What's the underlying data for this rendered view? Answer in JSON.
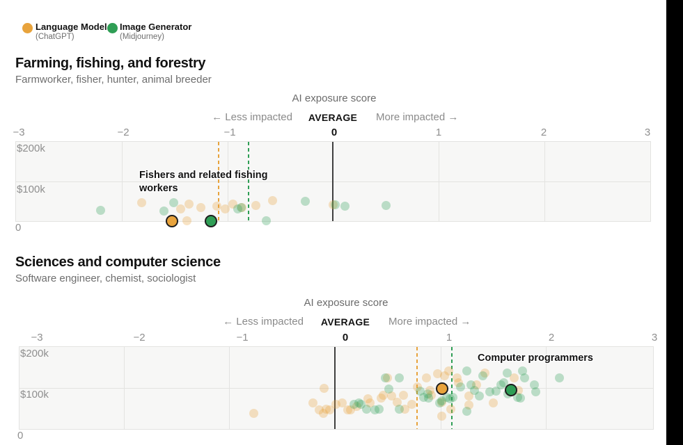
{
  "colors": {
    "language_model": "#e8a33c",
    "image_generator": "#2f9e55",
    "average_line": "#3f3f3f",
    "plot_background": "#f7f7f6",
    "gridline": "#e3e3e1"
  },
  "legend": {
    "items": [
      {
        "label": "Language Model",
        "sublabel": "(ChatGPT)",
        "color": "#e8a33c"
      },
      {
        "label": "Image Generator",
        "sublabel": "(Midjourney)",
        "color": "#2f9e55"
      }
    ]
  },
  "chart_data": [
    {
      "type": "scatter",
      "title": "Farming, fishing, and forestry",
      "subtitle": "Farmworker, fisher, hunter, animal breeder",
      "axis_title": "AI exposure score",
      "less_label": "← Less impacted",
      "average_label": "AVERAGE",
      "more_label": "More impacted →",
      "x_tick_labels": [
        "−3",
        "−2",
        "−1",
        "0",
        "1",
        "2",
        "3"
      ],
      "x_range": [
        -3,
        3
      ],
      "y_tick_labels": [
        "$200k",
        "$100k",
        "0"
      ],
      "y_range_salary_k": [
        0,
        200
      ],
      "annotation": "Fishers and related fishing workers",
      "average_line_x": 0,
      "ref_lines": [
        {
          "series": "Language Model",
          "x": -1.08
        },
        {
          "series": "Image Generator",
          "x": -0.8
        }
      ],
      "highlighted": [
        {
          "series": "Language Model",
          "label": "Fishers and related fishing workers",
          "x": -1.52,
          "salary_k": 0
        },
        {
          "series": "Image Generator",
          "label": "Fishers and related fishing workers",
          "x": -1.15,
          "salary_k": 0
        }
      ],
      "series": [
        {
          "name": "Language Model",
          "points": [
            [
              -1.81,
              47
            ],
            [
              -1.44,
              31
            ],
            [
              -1.38,
              1
            ],
            [
              -1.36,
              43
            ],
            [
              -1.25,
              35
            ],
            [
              -1.1,
              38
            ],
            [
              -1.02,
              30
            ],
            [
              -0.95,
              43
            ],
            [
              -0.86,
              35
            ],
            [
              -0.73,
              40
            ],
            [
              -0.57,
              52
            ],
            [
              0.0,
              42
            ]
          ]
        },
        {
          "name": "Image Generator",
          "points": [
            [
              -2.2,
              28
            ],
            [
              -1.6,
              26
            ],
            [
              -1.51,
              47
            ],
            [
              -0.9,
              30
            ],
            [
              -0.87,
              35
            ],
            [
              -0.63,
              1
            ],
            [
              -0.26,
              50
            ],
            [
              0.02,
              42
            ],
            [
              0.11,
              38
            ],
            [
              0.5,
              40
            ]
          ]
        }
      ]
    },
    {
      "type": "scatter",
      "title": "Sciences and computer science",
      "subtitle": "Software engineer, chemist, sociologist",
      "axis_title": "AI exposure score",
      "less_label": "← Less impacted",
      "average_label": "AVERAGE",
      "more_label": "More impacted →",
      "x_tick_labels": [
        "−3",
        "−2",
        "−1",
        "0",
        "1",
        "2",
        "3"
      ],
      "x_range": [
        -3,
        3
      ],
      "y_tick_labels": [
        "$200k",
        "$100k",
        "0"
      ],
      "y_range_salary_k": [
        0,
        200
      ],
      "annotation": "Computer programmers",
      "average_line_x": 0,
      "ref_lines": [
        {
          "series": "Language Model",
          "x": 0.78
        },
        {
          "series": "Image Generator",
          "x": 1.11
        }
      ],
      "highlighted": [
        {
          "series": "Language Model",
          "label": "Computer programmers",
          "x": 1.02,
          "salary_k": 97
        },
        {
          "series": "Image Generator",
          "label": "Computer programmers",
          "x": 1.67,
          "salary_k": 95
        }
      ],
      "series": [
        {
          "name": "Language Model",
          "points": [
            [
              -0.77,
              39
            ],
            [
              -0.21,
              64
            ],
            [
              -0.15,
              47
            ],
            [
              -0.11,
              39
            ],
            [
              -0.1,
              100
            ],
            [
              -0.08,
              49
            ],
            [
              -0.05,
              47
            ],
            [
              0.01,
              61
            ],
            [
              0.07,
              64
            ],
            [
              0.12,
              47
            ],
            [
              0.15,
              47
            ],
            [
              0.21,
              56
            ],
            [
              0.31,
              73
            ],
            [
              0.33,
              64
            ],
            [
              0.44,
              75
            ],
            [
              0.46,
              83
            ],
            [
              0.5,
              125
            ],
            [
              0.54,
              81
            ],
            [
              0.59,
              66
            ],
            [
              0.65,
              83
            ],
            [
              0.66,
              49
            ],
            [
              0.73,
              61
            ],
            [
              0.78,
              103
            ],
            [
              0.87,
              124
            ],
            [
              0.9,
              95
            ],
            [
              0.91,
              83
            ],
            [
              0.97,
              134
            ],
            [
              1.01,
              66
            ],
            [
              1.01,
              32
            ],
            [
              1.04,
              129
            ],
            [
              1.08,
              141
            ],
            [
              1.1,
              49
            ],
            [
              1.16,
              124
            ],
            [
              1.17,
              112
            ],
            [
              1.27,
              81
            ],
            [
              1.27,
              58
            ],
            [
              1.34,
              107
            ],
            [
              1.42,
              137
            ],
            [
              1.5,
              64
            ],
            [
              1.7,
              125
            ],
            [
              1.74,
              95
            ]
          ]
        },
        {
          "name": "Image Generator",
          "points": [
            [
              0.18,
              61
            ],
            [
              0.23,
              64
            ],
            [
              0.25,
              61
            ],
            [
              0.3,
              49
            ],
            [
              0.38,
              47
            ],
            [
              0.42,
              49
            ],
            [
              0.48,
              124
            ],
            [
              0.51,
              98
            ],
            [
              0.61,
              125
            ],
            [
              0.61,
              49
            ],
            [
              0.81,
              92
            ],
            [
              0.84,
              78
            ],
            [
              0.88,
              86
            ],
            [
              0.89,
              75
            ],
            [
              0.99,
              64
            ],
            [
              1.01,
              69
            ],
            [
              1.06,
              78
            ],
            [
              1.09,
              73
            ],
            [
              1.12,
              78
            ],
            [
              1.19,
              103
            ],
            [
              1.25,
              141
            ],
            [
              1.25,
              44
            ],
            [
              1.29,
              108
            ],
            [
              1.32,
              95
            ],
            [
              1.37,
              81
            ],
            [
              1.4,
              129
            ],
            [
              1.47,
              90
            ],
            [
              1.53,
              92
            ],
            [
              1.57,
              107
            ],
            [
              1.6,
              112
            ],
            [
              1.63,
              137
            ],
            [
              1.64,
              86
            ],
            [
              1.73,
              78
            ],
            [
              1.76,
              75
            ],
            [
              1.78,
              142
            ],
            [
              1.8,
              125
            ],
            [
              1.89,
              108
            ],
            [
              1.9,
              90
            ],
            [
              2.13,
              125
            ]
          ]
        }
      ]
    }
  ]
}
